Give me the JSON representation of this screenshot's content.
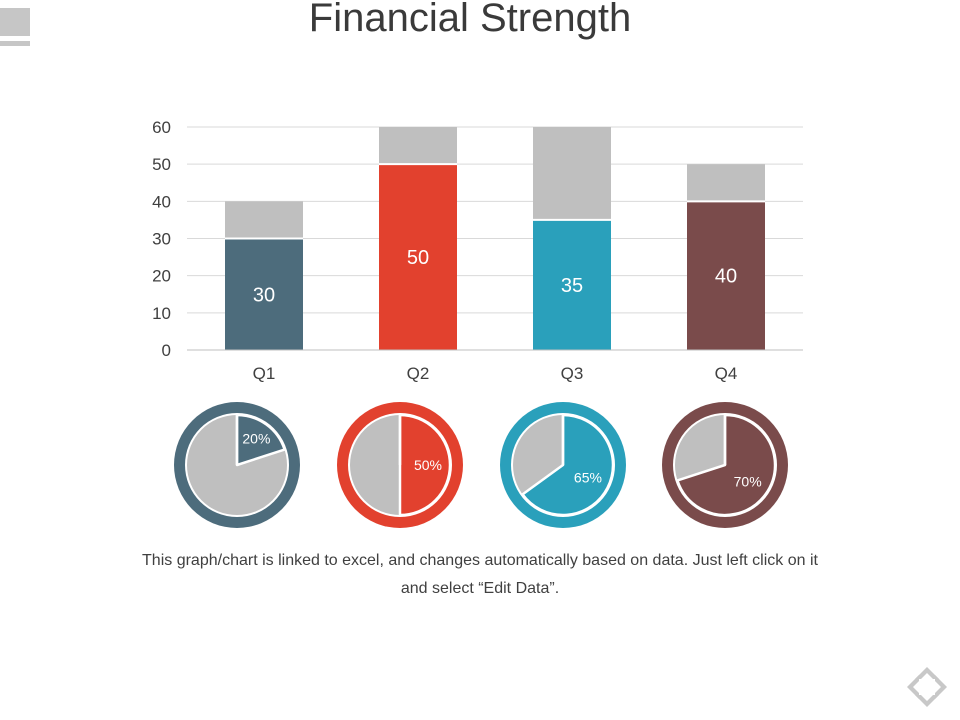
{
  "title": "Financial Strength",
  "caption": "This graph/chart is linked to excel, and changes automatically based on data. Just left click on it and select “Edit Data”.",
  "colors": {
    "slate": "#4d6c7c",
    "red": "#e2412e",
    "teal": "#2aa0bb",
    "brown": "#7a4b4b",
    "gray": "#bfbfbf",
    "grid": "#d9d9d9",
    "axis_text": "#404040"
  },
  "icons": {
    "corner": "slide-corner-decoration",
    "nav": "navigation-diamond-icon"
  },
  "chart_data": [
    {
      "type": "bar",
      "stacked": true,
      "categories": [
        "Q1",
        "Q2",
        "Q3",
        "Q4"
      ],
      "series": [
        {
          "values": [
            30,
            50,
            35,
            40
          ],
          "colors": [
            "#4d6c7c",
            "#e2412e",
            "#2aa0bb",
            "#7a4b4b"
          ],
          "labels": [
            "30",
            "50",
            "35",
            "40"
          ]
        },
        {
          "values": [
            10,
            10,
            25,
            10
          ],
          "color": "#bfbfbf"
        }
      ],
      "ylim": [
        0,
        60
      ],
      "yticks": [
        0,
        10,
        20,
        30,
        40,
        50,
        60
      ],
      "grid": true
    },
    {
      "type": "pie",
      "charts": [
        {
          "value": 20,
          "label": "20%",
          "color": "#4d6c7c"
        },
        {
          "value": 50,
          "label": "50%",
          "color": "#e2412e"
        },
        {
          "value": 65,
          "label": "65%",
          "color": "#2aa0bb"
        },
        {
          "value": 70,
          "label": "70%",
          "color": "#7a4b4b"
        }
      ],
      "remainder_color": "#bfbfbf"
    }
  ]
}
